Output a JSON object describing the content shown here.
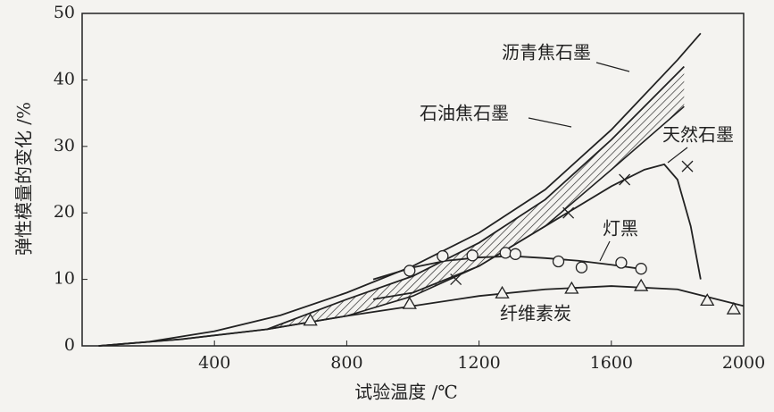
{
  "chart_data": {
    "type": "line",
    "x_label": "试验温度 /℃",
    "y_label": "弹性模量的变化 /%",
    "xlim": [
      0,
      2000
    ],
    "xticks": [
      400,
      800,
      1200,
      1600,
      2000
    ],
    "ylim": [
      0,
      50
    ],
    "yticks": [
      0,
      10,
      20,
      30,
      40,
      50
    ],
    "series": [
      {
        "name": "沥青焦石墨",
        "color": "#222222",
        "x": [
          50,
          200,
          400,
          600,
          800,
          1000,
          1200,
          1400,
          1600,
          1800,
          1870
        ],
        "values": [
          0,
          0.6,
          2.2,
          4.6,
          8,
          12,
          17,
          23.5,
          32.5,
          43,
          47
        ]
      },
      {
        "name": "石油焦石墨",
        "color": "#222222",
        "band": true,
        "x": [
          50,
          300,
          560,
          800,
          1000,
          1200,
          1400,
          1600,
          1820
        ],
        "values": [
          0,
          1,
          2.5,
          7,
          10.5,
          15.5,
          22,
          31,
          42
        ],
        "values_low": [
          0,
          1,
          2.5,
          4.5,
          7.5,
          12,
          18,
          26.5,
          36
        ]
      },
      {
        "name": "天然石墨",
        "color": "#222222",
        "marker": "x",
        "x": [
          880,
          1000,
          1200,
          1400,
          1600,
          1700,
          1760,
          1800,
          1840,
          1870
        ],
        "values": [
          7,
          8,
          12,
          18,
          24,
          26.5,
          27.3,
          25,
          18,
          10
        ],
        "marker_x": [
          1130,
          1470,
          1640,
          1830
        ],
        "marker_values": [
          10,
          20,
          25,
          27
        ]
      },
      {
        "name": "灯黑",
        "color": "#222222",
        "marker": "circle",
        "x": [
          880,
          1000,
          1100,
          1200,
          1300,
          1400,
          1500,
          1600,
          1700
        ],
        "values": [
          10,
          11.8,
          12.8,
          13.3,
          13.5,
          13.2,
          12.8,
          12.2,
          11.5
        ],
        "marker_x": [
          990,
          1090,
          1180,
          1280,
          1310,
          1440,
          1510,
          1630,
          1690
        ],
        "marker_values": [
          11.3,
          13.5,
          13.6,
          14,
          13.8,
          12.7,
          11.8,
          12.5,
          11.6
        ]
      },
      {
        "name": "纤维素炭",
        "color": "#222222",
        "marker": "triangle",
        "x": [
          560,
          800,
          1000,
          1200,
          1400,
          1600,
          1800,
          2000
        ],
        "values": [
          2.5,
          4.5,
          6,
          7.5,
          8.5,
          9,
          8.5,
          6
        ],
        "marker_x": [
          690,
          990,
          1270,
          1480,
          1690,
          1890,
          1970
        ],
        "marker_values": [
          3.8,
          6.3,
          7.9,
          8.6,
          9,
          6.8,
          5.5
        ]
      }
    ]
  }
}
